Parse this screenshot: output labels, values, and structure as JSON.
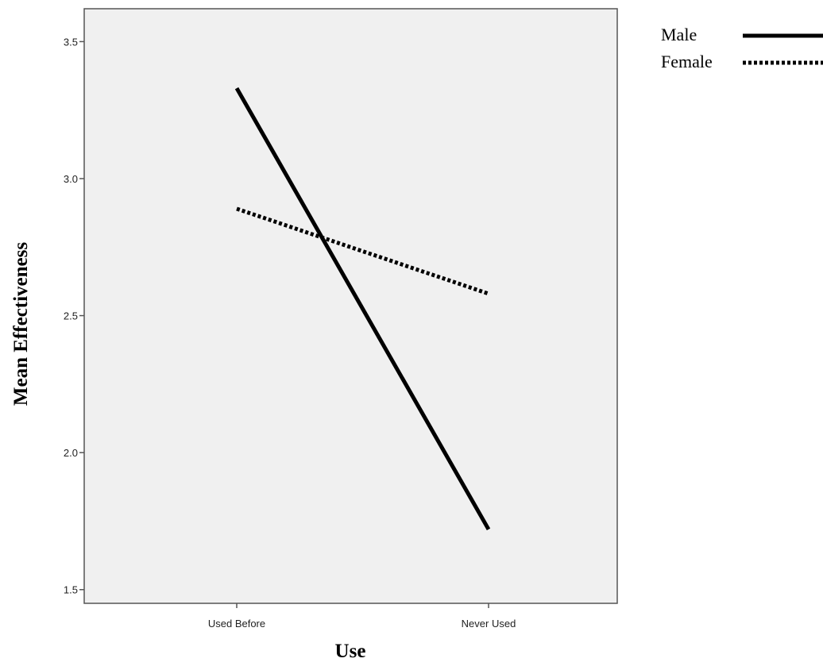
{
  "chart_data": {
    "type": "line",
    "title": "",
    "xlabel": "Use",
    "ylabel": "Mean Effectiveness",
    "categories": [
      "Used Before",
      "Never Used"
    ],
    "ylim": [
      1.45,
      3.62
    ],
    "yticks": [
      "1.5",
      "2.0",
      "2.5",
      "3.0",
      "3.5"
    ],
    "grid": false,
    "legend_position": "top-right, outside plot",
    "series": [
      {
        "name": "Male",
        "values": [
          3.33,
          1.72
        ],
        "style": "solid",
        "color": "#000000"
      },
      {
        "name": "Female",
        "values": [
          2.89,
          2.58
        ],
        "style": "dotted",
        "color": "#000000"
      }
    ],
    "colors": {
      "plot_background": "#f0f0f0",
      "frame": "#555555"
    }
  }
}
